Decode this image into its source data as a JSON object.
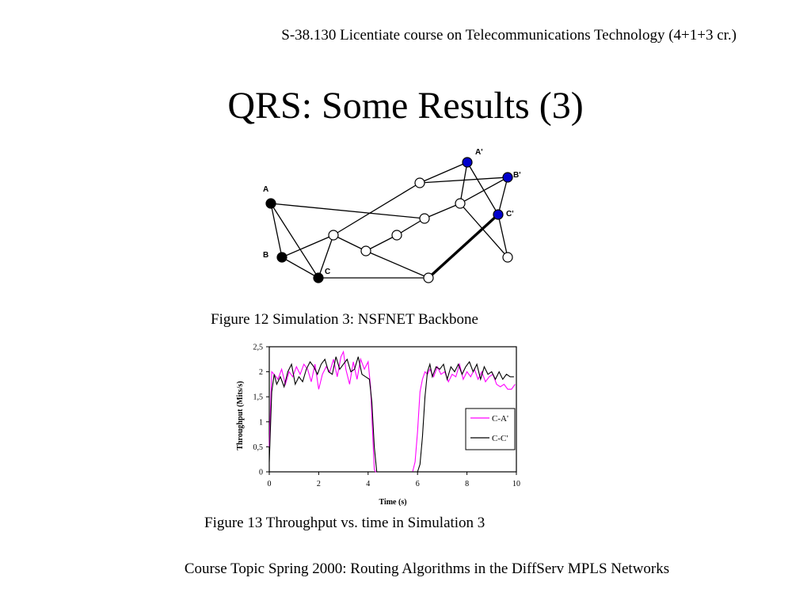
{
  "header": {
    "course_line": "S-38.130 Licentiate course on Telecommunications Technology (4+1+3 cr.)"
  },
  "title": "QRS: Some Results (3)",
  "network_figure": {
    "caption": "Figure 12 Simulation 3: NSFNET Backbone",
    "node_labels": {
      "A": "A",
      "B": "B",
      "C": "C",
      "A2": "A'",
      "B2": "B'",
      "C2": "C'"
    },
    "colors": {
      "source": "#000000",
      "destination": "#0000cc",
      "transit": "#ffffff"
    }
  },
  "chart_figure": {
    "caption": "Figure 13 Throughput vs. time in Simulation 3"
  },
  "chart_data": {
    "type": "line",
    "xlabel": "Time (s)",
    "ylabel": "Throughput (Mits/s)",
    "xlim": [
      0,
      10
    ],
    "ylim": [
      0,
      2.5
    ],
    "x_ticks": [
      "0",
      "2",
      "4",
      "6",
      "8",
      "10"
    ],
    "y_ticks": [
      "0",
      "0,5",
      "1",
      "1,5",
      "2",
      "2,5"
    ],
    "legend_position": "right",
    "series": [
      {
        "name": "C-A'",
        "color": "#ff00ff",
        "x": [
          0,
          0.1,
          0.2,
          0.35,
          0.5,
          0.65,
          0.8,
          0.95,
          1.1,
          1.25,
          1.4,
          1.55,
          1.7,
          1.85,
          2.0,
          2.15,
          2.3,
          2.45,
          2.6,
          2.75,
          2.9,
          3.0,
          3.1,
          3.25,
          3.4,
          3.55,
          3.7,
          3.85,
          4.0,
          4.1,
          4.2,
          4.25,
          4.3,
          5.8,
          5.9,
          6.0,
          6.1,
          6.2,
          6.3,
          6.4,
          6.5,
          6.65,
          6.8,
          6.95,
          7.1,
          7.25,
          7.4,
          7.55,
          7.7,
          7.85,
          8.0,
          8.15,
          8.3,
          8.45,
          8.6,
          8.75,
          8.9,
          9.05,
          9.2,
          9.35,
          9.5,
          9.65,
          9.8,
          9.95
        ],
        "y": [
          0.5,
          2.0,
          1.95,
          1.85,
          2.05,
          1.75,
          2.0,
          1.9,
          2.1,
          1.95,
          2.15,
          2.05,
          1.8,
          2.15,
          1.65,
          1.95,
          2.1,
          2.0,
          2.25,
          1.9,
          2.3,
          2.4,
          2.05,
          1.75,
          2.2,
          1.85,
          2.25,
          2.05,
          2.2,
          1.7,
          0.6,
          0.05,
          0,
          0,
          0.2,
          0.8,
          1.6,
          1.85,
          2.0,
          1.95,
          2.05,
          1.9,
          2.1,
          1.95,
          2.0,
          1.8,
          1.95,
          1.9,
          2.15,
          1.85,
          2.0,
          1.9,
          2.05,
          1.85,
          2.0,
          1.8,
          1.9,
          1.95,
          1.75,
          1.7,
          1.75,
          1.65,
          1.65,
          1.75
        ]
      },
      {
        "name": "C-C'",
        "color": "#000000",
        "x": [
          0,
          0.1,
          0.2,
          0.3,
          0.45,
          0.6,
          0.75,
          0.9,
          1.05,
          1.2,
          1.35,
          1.5,
          1.65,
          1.8,
          1.95,
          2.1,
          2.25,
          2.4,
          2.55,
          2.7,
          2.85,
          3.0,
          3.15,
          3.3,
          3.45,
          3.6,
          3.75,
          3.9,
          4.05,
          4.15,
          4.25,
          4.35,
          6.0,
          6.1,
          6.2,
          6.3,
          6.4,
          6.5,
          6.6,
          6.75,
          6.9,
          7.05,
          7.2,
          7.35,
          7.5,
          7.65,
          7.8,
          7.95,
          8.1,
          8.25,
          8.4,
          8.55,
          8.7,
          8.85,
          9.0,
          9.15,
          9.3,
          9.45,
          9.6,
          9.75,
          9.9
        ],
        "y": [
          0.2,
          1.6,
          1.95,
          1.75,
          1.9,
          1.7,
          2.0,
          2.15,
          1.75,
          1.9,
          1.8,
          2.05,
          2.2,
          2.1,
          1.95,
          2.15,
          2.25,
          2.0,
          1.95,
          2.3,
          2.05,
          2.15,
          2.25,
          2.0,
          2.05,
          2.3,
          1.95,
          1.9,
          1.85,
          1.4,
          0.5,
          0,
          0,
          0.15,
          0.7,
          1.5,
          2.0,
          2.15,
          1.9,
          2.1,
          2.05,
          2.15,
          1.85,
          2.1,
          2.0,
          2.15,
          1.95,
          2.1,
          2.2,
          2.0,
          2.15,
          1.85,
          2.1,
          1.95,
          2.0,
          1.85,
          2.0,
          1.85,
          1.95,
          1.9,
          1.9
        ]
      }
    ]
  },
  "footer": {
    "text": "Course Topic Spring 2000: Routing Algorithms in the DiffServ MPLS Networks"
  }
}
